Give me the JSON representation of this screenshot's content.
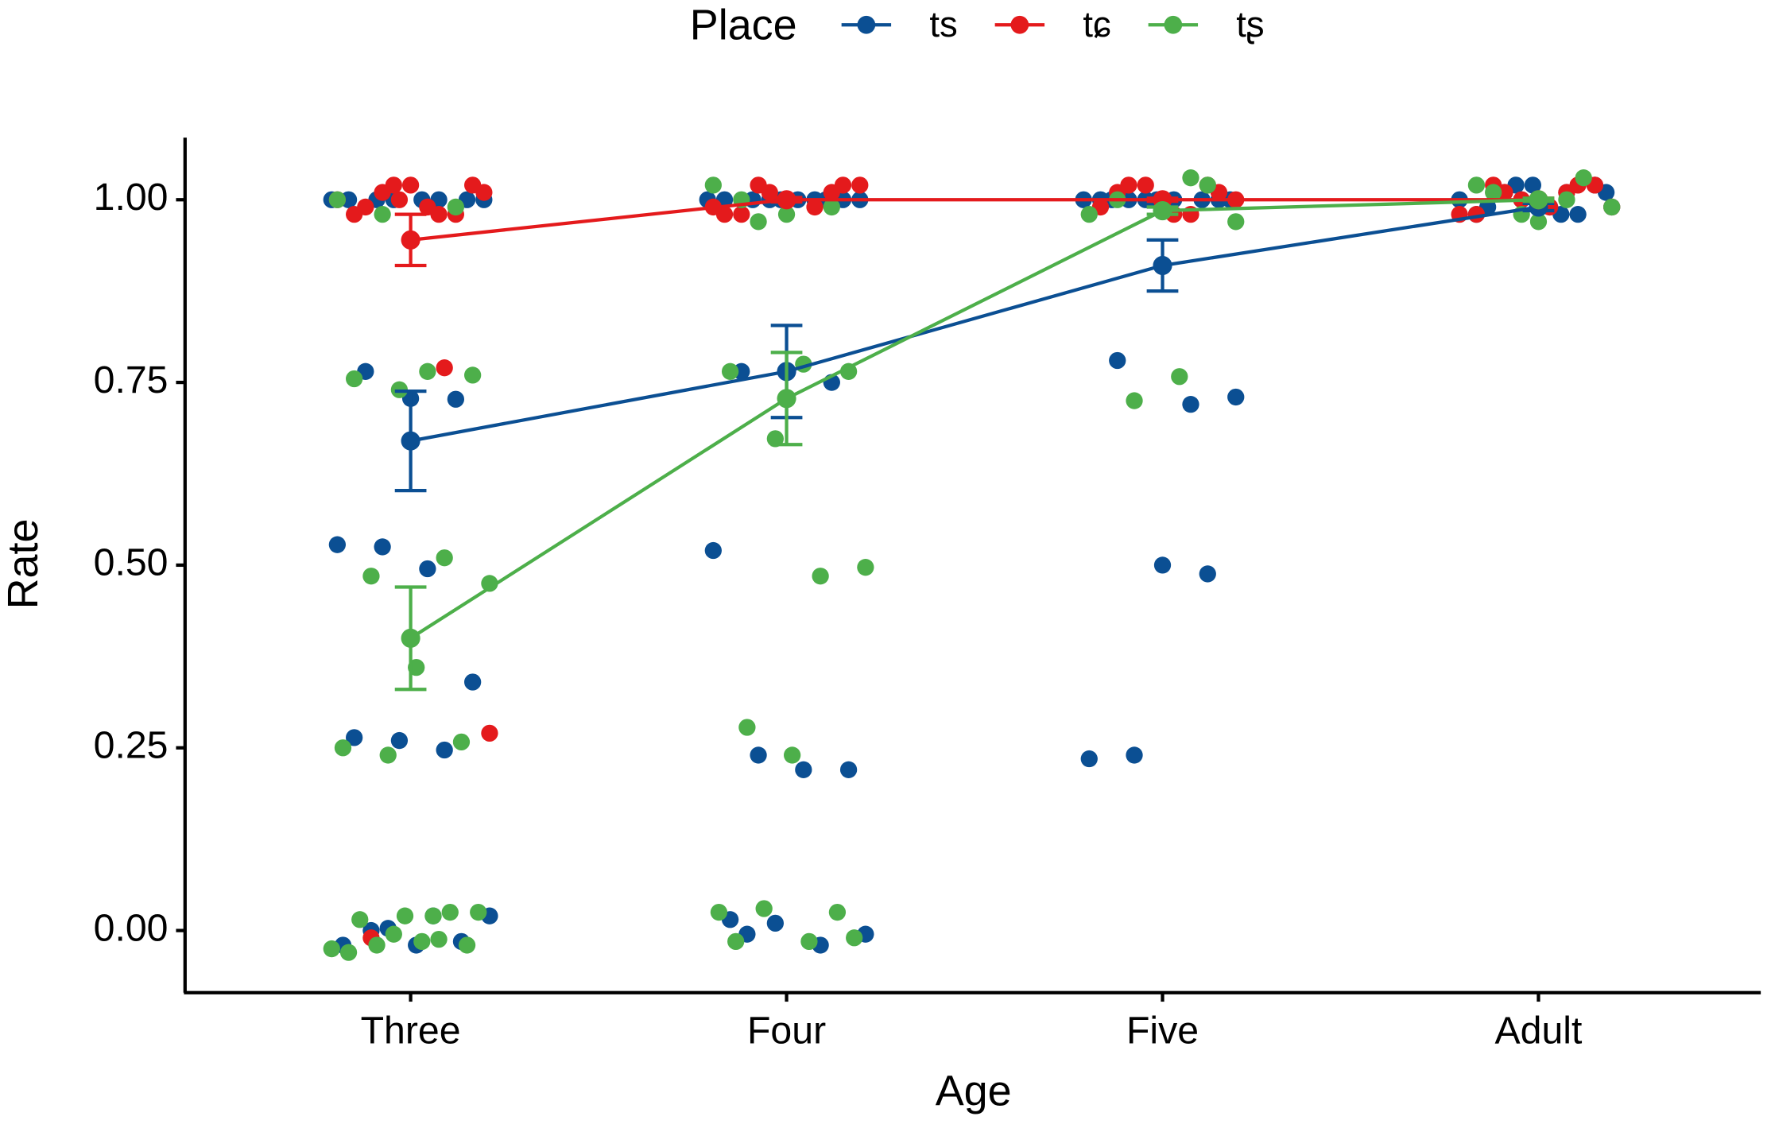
{
  "chart_data": {
    "type": "line",
    "legend_title": "Place",
    "legend": "top",
    "x_label": "Age",
    "y_label": "Rate",
    "categories": [
      "Three",
      "Four",
      "Five",
      "Adult"
    ],
    "ylim": [
      -0.085,
      1.085
    ],
    "yticks": [
      {
        "value": 0,
        "label": "0.00"
      },
      0.25,
      {
        "value": 0.5,
        "label": "0.50"
      },
      0.75,
      {
        "value": 1,
        "label": "1.00"
      }
    ],
    "series": [
      {
        "name": "ts",
        "color": "#0b4f93",
        "values": [
          0.67,
          0.765,
          0.91,
          0.99
        ],
        "errors": [
          0.068,
          0.063,
          0.035,
          0.005
        ],
        "points": [
          [
            1,
            1,
            1,
            1,
            1,
            1,
            1,
            1,
            0.765,
            0.728,
            0.727,
            0.528,
            0.525,
            0.495,
            0.34,
            0.264,
            0.26,
            0.247,
            0.02,
            0,
            -0.02,
            -0.015,
            -0.02,
            0.003,
            0.02
          ],
          [
            1,
            1,
            1,
            1,
            1,
            1,
            1,
            1,
            1,
            1,
            0.765,
            0.765,
            0.75,
            0.52,
            0.24,
            0.22,
            0.22,
            0.015,
            0.01,
            -0.02,
            -0.005,
            -0.005
          ],
          [
            1,
            1,
            1,
            1,
            1,
            1,
            1,
            1,
            1,
            1,
            0.72,
            0.73,
            0.78,
            0.5,
            0.488,
            0.235,
            0.24
          ],
          [
            1.02,
            0.98,
            1.01,
            0.99,
            1.02,
            0.98,
            1,
            1.01,
            0.99,
            1.02,
            0.98,
            1,
            1.01,
            0.99
          ]
        ]
      },
      {
        "name": "tɕ",
        "color": "#e41a1c",
        "values": [
          0.945,
          1,
          1,
          1
        ],
        "errors": [
          0.035,
          0.003,
          0.002,
          0.002
        ],
        "points": [
          [
            1.02,
            0.98,
            1.01,
            0.99,
            1.02,
            0.98,
            1,
            1.01,
            0.99,
            1.02,
            0.98,
            1,
            0.77,
            0.27,
            -0.01
          ],
          [
            1.02,
            0.98,
            1.01,
            0.99,
            1.02,
            0.98,
            1,
            1.01,
            0.99,
            1.02
          ],
          [
            1.02,
            0.98,
            1.01,
            0.99,
            1.02,
            0.98,
            1,
            1.01,
            0.99,
            1.02
          ],
          [
            1.02,
            0.98,
            1.01,
            0.99,
            1.02,
            0.98,
            1,
            1.01,
            0.99,
            1.02
          ]
        ]
      },
      {
        "name": "tʂ",
        "color": "#4daf4a",
        "values": [
          0.4,
          0.728,
          0.985,
          1
        ],
        "errors": [
          0.07,
          0.063,
          0.005,
          0.002
        ],
        "points": [
          [
            0.99,
            1,
            0.98,
            0.765,
            0.76,
            0.755,
            0.74,
            0.51,
            0.475,
            0.485,
            0.36,
            0.258,
            0.25,
            0.24,
            0.02,
            0.025,
            0.015,
            0.02,
            0.025,
            -0.025,
            -0.02,
            -0.015,
            -0.02,
            -0.03,
            -0.005,
            -0.012
          ],
          [
            1,
            0.98,
            0.99,
            1.02,
            0.97,
            0.775,
            0.765,
            0.765,
            0.673,
            0.485,
            0.497,
            0.278,
            0.24,
            0.025,
            0.025,
            0.03,
            -0.015,
            -0.01,
            -0.015
          ],
          [
            1.03,
            0.97,
            1,
            0.99,
            1.02,
            0.98,
            0.725,
            0.758
          ],
          [
            1.02,
            0.98,
            1,
            0.99,
            1.01,
            0.97,
            1.03
          ]
        ]
      }
    ]
  }
}
